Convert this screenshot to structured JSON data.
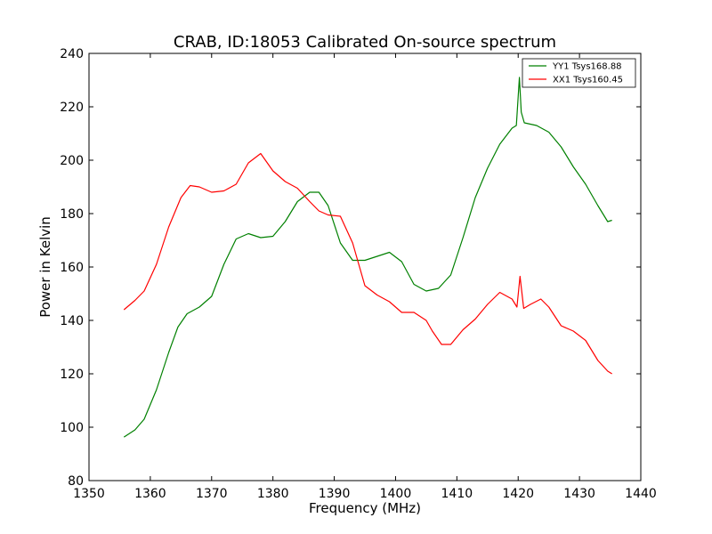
{
  "chart_data": {
    "type": "line",
    "title": "CRAB, ID:18053 Calibrated On-source spectrum",
    "xlabel": "Frequency (MHz)",
    "ylabel": "Power in Kelvin",
    "xlim": [
      1350,
      1440
    ],
    "ylim": [
      80,
      240
    ],
    "xticks": [
      1350,
      1360,
      1370,
      1380,
      1390,
      1400,
      1410,
      1420,
      1430,
      1440
    ],
    "yticks": [
      80,
      100,
      120,
      140,
      160,
      180,
      200,
      220,
      240
    ],
    "grid": false,
    "legend_position": "top-right",
    "series": [
      {
        "name": "YY1 Tsys168.88",
        "color": "#008000",
        "x": [
          1355.7,
          1357.5,
          1359.0,
          1361.0,
          1363.0,
          1364.5,
          1366.0,
          1368.0,
          1370.0,
          1372.0,
          1374.0,
          1376.0,
          1378.0,
          1380.0,
          1382.0,
          1384.0,
          1386.0,
          1387.5,
          1389.0,
          1391.0,
          1393.0,
          1395.0,
          1397.0,
          1399.0,
          1401.0,
          1403.0,
          1405.0,
          1407.0,
          1409.0,
          1411.0,
          1413.0,
          1415.0,
          1417.0,
          1419.0,
          1419.7,
          1420.2,
          1420.5,
          1421.0,
          1423.0,
          1425.0,
          1427.0,
          1429.0,
          1431.0,
          1433.0,
          1434.6,
          1435.3
        ],
        "values": [
          96.3,
          99.0,
          103.0,
          114.0,
          128.0,
          137.5,
          142.5,
          145.0,
          149.0,
          161.0,
          170.5,
          172.5,
          171.0,
          171.5,
          177.0,
          184.5,
          188.0,
          188.0,
          183.0,
          169.0,
          162.5,
          162.5,
          164.0,
          165.5,
          162.0,
          153.5,
          151.0,
          152.0,
          157.0,
          171.0,
          186.0,
          197.0,
          206.0,
          212.0,
          213.0,
          231.0,
          218.0,
          214.0,
          213.0,
          210.5,
          205.0,
          197.5,
          191.0,
          183.0,
          177.0,
          177.5
        ]
      },
      {
        "name": "XX1 Tsys160.45",
        "color": "#ff0000",
        "x": [
          1355.7,
          1357.5,
          1359.0,
          1361.0,
          1363.0,
          1365.0,
          1366.5,
          1368.0,
          1370.0,
          1372.0,
          1374.0,
          1376.0,
          1378.0,
          1380.0,
          1382.0,
          1384.0,
          1386.0,
          1387.5,
          1389.0,
          1391.0,
          1393.0,
          1395.0,
          1397.0,
          1399.0,
          1401.0,
          1403.0,
          1405.0,
          1406.0,
          1407.5,
          1409.0,
          1411.0,
          1413.0,
          1415.0,
          1417.0,
          1419.0,
          1419.8,
          1420.3,
          1420.9,
          1422.0,
          1423.7,
          1425.0,
          1427.0,
          1429.0,
          1431.0,
          1433.0,
          1434.6,
          1435.3
        ],
        "values": [
          144.0,
          147.5,
          151.0,
          161.0,
          175.0,
          186.0,
          190.5,
          190.0,
          188.0,
          188.5,
          191.0,
          199.0,
          202.5,
          196.0,
          192.0,
          189.5,
          184.5,
          181.0,
          179.5,
          179.0,
          169.0,
          153.0,
          149.5,
          147.0,
          143.0,
          143.0,
          140.0,
          136.0,
          131.0,
          131.0,
          136.5,
          140.5,
          146.0,
          150.5,
          148.0,
          145.0,
          156.5,
          144.5,
          146.0,
          148.0,
          145.0,
          138.0,
          136.0,
          132.5,
          125.0,
          121.0,
          120.0
        ]
      }
    ]
  }
}
